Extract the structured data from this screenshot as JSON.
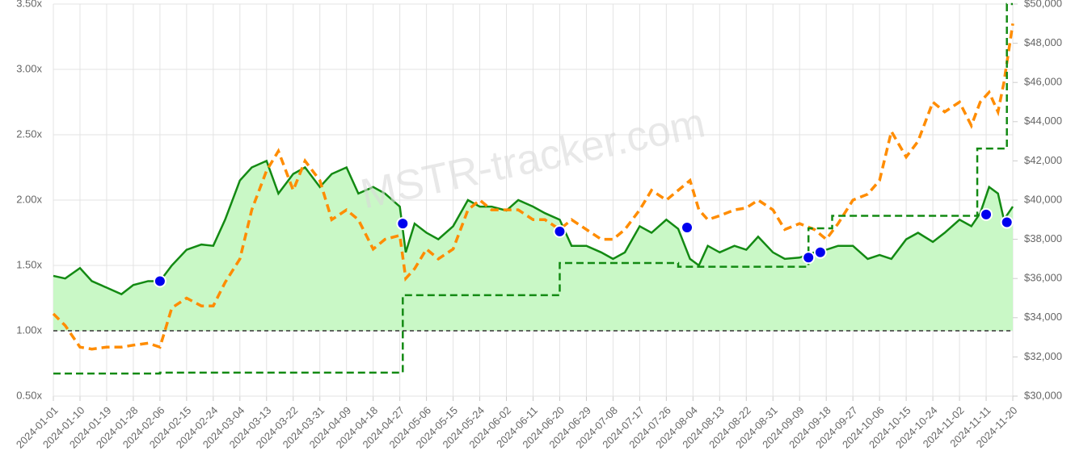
{
  "chart_data": {
    "type": "line",
    "annotation": "MSTR-tracker.com",
    "x": [
      "2024-01-01",
      "2024-01-05",
      "2024-01-10",
      "2024-01-14",
      "2024-01-19",
      "2024-01-24",
      "2024-01-28",
      "2024-02-02",
      "2024-02-06",
      "2024-02-10",
      "2024-02-15",
      "2024-02-20",
      "2024-02-24",
      "2024-02-28",
      "2024-03-04",
      "2024-03-08",
      "2024-03-13",
      "2024-03-17",
      "2024-03-22",
      "2024-03-26",
      "2024-03-31",
      "2024-04-04",
      "2024-04-09",
      "2024-04-13",
      "2024-04-18",
      "2024-04-22",
      "2024-04-27",
      "2024-04-29",
      "2024-05-02",
      "2024-05-06",
      "2024-05-10",
      "2024-05-15",
      "2024-05-20",
      "2024-05-24",
      "2024-05-28",
      "2024-06-02",
      "2024-06-06",
      "2024-06-11",
      "2024-06-15",
      "2024-06-20",
      "2024-06-24",
      "2024-06-29",
      "2024-07-04",
      "2024-07-08",
      "2024-07-12",
      "2024-07-17",
      "2024-07-21",
      "2024-07-26",
      "2024-07-30",
      "2024-08-03",
      "2024-08-06",
      "2024-08-09",
      "2024-08-13",
      "2024-08-18",
      "2024-08-22",
      "2024-08-26",
      "2024-08-31",
      "2024-09-04",
      "2024-09-09",
      "2024-09-14",
      "2024-09-18",
      "2024-09-22",
      "2024-09-27",
      "2024-10-02",
      "2024-10-06",
      "2024-10-10",
      "2024-10-15",
      "2024-10-19",
      "2024-10-24",
      "2024-10-28",
      "2024-11-02",
      "2024-11-06",
      "2024-11-09",
      "2024-11-12",
      "2024-11-15",
      "2024-11-17",
      "2024-11-20"
    ],
    "series": [
      {
        "style": "area",
        "color": "#138a13",
        "fill": "#c9f8c6",
        "values": [
          1.42,
          1.4,
          1.48,
          1.38,
          1.33,
          1.28,
          1.35,
          1.38,
          1.38,
          1.5,
          1.62,
          1.66,
          1.65,
          1.85,
          2.15,
          2.25,
          2.3,
          2.05,
          2.2,
          2.25,
          2.1,
          2.2,
          2.25,
          2.05,
          2.1,
          2.05,
          1.95,
          1.6,
          1.82,
          1.75,
          1.7,
          1.8,
          2.0,
          1.95,
          1.95,
          1.92,
          2.0,
          1.95,
          1.9,
          1.85,
          1.65,
          1.65,
          1.6,
          1.55,
          1.6,
          1.8,
          1.75,
          1.85,
          1.78,
          1.55,
          1.5,
          1.65,
          1.6,
          1.65,
          1.62,
          1.72,
          1.6,
          1.55,
          1.56,
          1.6,
          1.62,
          1.65,
          1.65,
          1.55,
          1.58,
          1.55,
          1.7,
          1.75,
          1.68,
          1.75,
          1.85,
          1.8,
          1.9,
          2.1,
          2.05,
          1.85,
          1.95
        ]
      },
      {
        "style": "dashed",
        "axis": "y2",
        "color": "#ff8c00",
        "values": [
          34200,
          33600,
          32500,
          32400,
          32500,
          32500,
          32600,
          32700,
          32500,
          34500,
          35000,
          34600,
          34600,
          35800,
          37000,
          39500,
          41500,
          42500,
          40500,
          42000,
          41000,
          39000,
          39500,
          39000,
          37500,
          38000,
          38200,
          36000,
          36500,
          37500,
          37000,
          37500,
          39500,
          40000,
          39500,
          39500,
          39500,
          39000,
          39000,
          38500,
          39000,
          38500,
          38000,
          38000,
          38500,
          39500,
          40500,
          40000,
          40500,
          41000,
          39500,
          39000,
          39200,
          39500,
          39600,
          40000,
          39500,
          38500,
          38800,
          38500,
          38000,
          38800,
          40000,
          40300,
          41000,
          43500,
          42200,
          43000,
          45000,
          44500,
          45000,
          43800,
          45000,
          45500,
          44500,
          46000,
          49000
        ]
      },
      {
        "style": "step",
        "axis": "y2",
        "color": "#138a13",
        "x": [
          "2024-01-01",
          "2024-02-06",
          "2024-04-28",
          "2024-06-20",
          "2024-07-30",
          "2024-09-12",
          "2024-09-20",
          "2024-11-08",
          "2024-11-18",
          "2024-11-20"
        ],
        "values": [
          31150,
          31200,
          35150,
          36790,
          36600,
          38560,
          39200,
          42630,
          50000,
          50000
        ]
      },
      {
        "style": "points",
        "color": "#0000ee",
        "x": [
          "2024-02-06",
          "2024-04-28",
          "2024-06-20",
          "2024-08-02",
          "2024-09-12",
          "2024-09-16",
          "2024-11-11",
          "2024-11-18"
        ],
        "values": [
          1.38,
          1.82,
          1.76,
          1.79,
          1.56,
          1.6,
          1.89,
          1.83
        ]
      }
    ],
    "hline": 1,
    "xlim": [
      "2024-01-01",
      "2024-11-20"
    ],
    "xticks": [
      "2024-01-01",
      "2024-01-10",
      "2024-01-19",
      "2024-01-28",
      "2024-02-06",
      "2024-02-15",
      "2024-02-24",
      "2024-03-04",
      "2024-03-13",
      "2024-03-22",
      "2024-03-31",
      "2024-04-09",
      "2024-04-18",
      "2024-04-27",
      "2024-05-06",
      "2024-05-15",
      "2024-05-24",
      "2024-06-02",
      "2024-06-11",
      "2024-06-20",
      "2024-06-29",
      "2024-07-08",
      "2024-07-17",
      "2024-07-26",
      "2024-08-04",
      "2024-08-13",
      "2024-08-22",
      "2024-08-31",
      "2024-09-09",
      "2024-09-18",
      "2024-09-27",
      "2024-10-06",
      "2024-10-15",
      "2024-10-24",
      "2024-11-02",
      "2024-11-11",
      "2024-11-20"
    ],
    "ylim": [
      0.5,
      3.5
    ],
    "yticks": [
      {
        "value": 0.5,
        "label": "0.50x"
      },
      {
        "value": 1,
        "label": "1.00x"
      },
      {
        "value": 1.5,
        "label": "1.50x"
      },
      {
        "value": 2,
        "label": "2.00x"
      },
      {
        "value": 2.5,
        "label": "2.50x"
      },
      {
        "value": 3,
        "label": "3.00x"
      },
      {
        "value": 3.5,
        "label": "3.50x"
      }
    ],
    "y2lim": [
      30000,
      50000
    ],
    "y2ticks": [
      {
        "value": 30000,
        "label": "$30,000"
      },
      {
        "value": 32000,
        "label": "$32,000"
      },
      {
        "value": 34000,
        "label": "$34,000"
      },
      {
        "value": 36000,
        "label": "$36,000"
      },
      {
        "value": 38000,
        "label": "$38,000"
      },
      {
        "value": 40000,
        "label": "$40,000"
      },
      {
        "value": 42000,
        "label": "$42,000"
      },
      {
        "value": 44000,
        "label": "$44,000"
      },
      {
        "value": 46000,
        "label": "$46,000"
      },
      {
        "value": 48000,
        "label": "$48,000"
      },
      {
        "value": 50000,
        "label": "$50,000"
      }
    ],
    "grid": true
  }
}
